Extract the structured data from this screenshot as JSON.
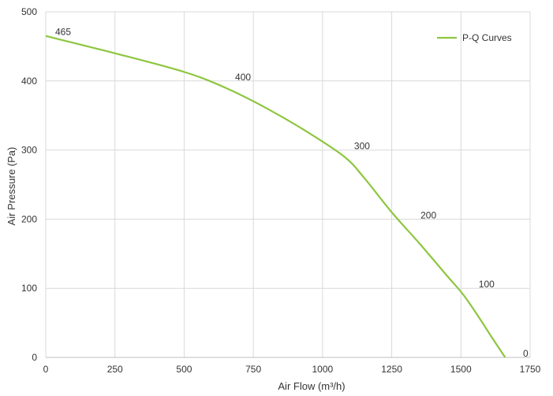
{
  "chart_data": {
    "type": "line",
    "xlabel": "Air Flow  (m³/h)",
    "ylabel": "Air Pressure  (Pa)",
    "xlim": [
      0,
      1750
    ],
    "ylim": [
      0,
      500
    ],
    "x_ticks": [
      0,
      250,
      500,
      750,
      1000,
      1250,
      1500,
      1750
    ],
    "y_ticks": [
      0,
      100,
      200,
      300,
      400,
      500
    ],
    "grid": true,
    "legend_position": "top-right",
    "series": [
      {
        "name": "P-Q Curves",
        "color": "#8dc63f",
        "x": [
          0,
          250,
          500,
          650,
          800,
          950,
          1080,
          1150,
          1250,
          1350,
          1450,
          1510,
          1570,
          1610,
          1660
        ],
        "y": [
          465,
          440,
          413,
          390,
          360,
          325,
          290,
          260,
          210,
          165,
          118,
          90,
          55,
          30,
          0
        ]
      }
    ],
    "data_labels": [
      {
        "text": "465",
        "x": 0,
        "y": 465
      },
      {
        "text": "400",
        "x": 650,
        "y": 400
      },
      {
        "text": "300",
        "x": 1080,
        "y": 300
      },
      {
        "text": "200",
        "x": 1320,
        "y": 200
      },
      {
        "text": "100",
        "x": 1530,
        "y": 100
      },
      {
        "text": "0",
        "x": 1690,
        "y": 0
      }
    ]
  }
}
